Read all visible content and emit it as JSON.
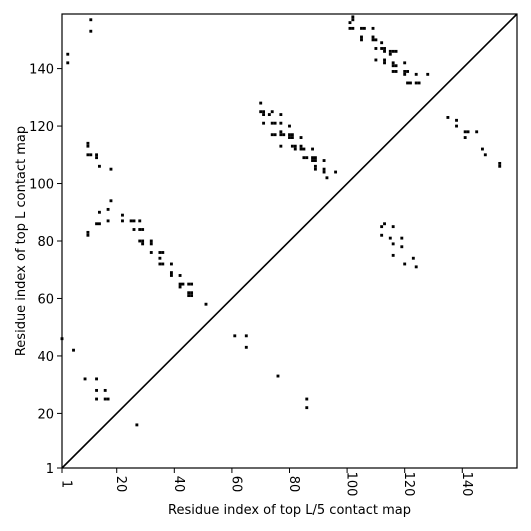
{
  "chart_data": {
    "type": "scatter",
    "title": "",
    "xlabel": "Residue index of top L/5 contact map",
    "ylabel": "Residue index of top L contact map",
    "xlim": [
      1,
      159
    ],
    "ylim": [
      1,
      159
    ],
    "grid": false,
    "legend": "none",
    "diagonal": true,
    "marker_color": "#000000",
    "x_ticks": [
      {
        "value": 1,
        "label": "1"
      },
      {
        "value": 20,
        "label": "20"
      },
      {
        "value": 40,
        "label": "40"
      },
      {
        "value": 60,
        "label": "60"
      },
      {
        "value": 80,
        "label": "80"
      },
      {
        "value": 100,
        "label": "100"
      },
      {
        "value": 120,
        "label": "120"
      },
      {
        "value": 140,
        "label": "140"
      }
    ],
    "y_ticks": [
      {
        "value": 1,
        "label": "1"
      },
      {
        "value": 20,
        "label": "20"
      },
      {
        "value": 40,
        "label": "40"
      },
      {
        "value": 60,
        "label": "60"
      },
      {
        "value": 80,
        "label": "80"
      },
      {
        "value": 100,
        "label": "100"
      },
      {
        "value": 120,
        "label": "120"
      },
      {
        "value": 140,
        "label": "140"
      }
    ],
    "upper_points": [
      [
        3,
        145
      ],
      [
        3,
        142
      ],
      [
        11,
        157
      ],
      [
        11,
        153
      ],
      [
        10,
        114
      ],
      [
        10,
        113
      ],
      [
        10,
        110
      ],
      [
        11,
        110
      ],
      [
        13,
        110
      ],
      [
        13,
        109
      ],
      [
        14,
        106
      ],
      [
        18,
        105
      ],
      [
        10,
        83
      ],
      [
        10,
        82
      ],
      [
        13,
        86
      ],
      [
        14,
        86
      ],
      [
        14,
        90
      ],
      [
        17,
        91
      ],
      [
        18,
        94
      ],
      [
        17,
        87
      ],
      [
        22,
        89
      ],
      [
        22,
        87
      ],
      [
        25,
        87
      ],
      [
        26,
        87
      ],
      [
        26,
        84
      ],
      [
        28,
        87
      ],
      [
        28,
        84
      ],
      [
        29,
        84
      ],
      [
        28,
        80
      ],
      [
        29,
        79
      ],
      [
        29,
        80
      ],
      [
        32,
        80
      ],
      [
        32,
        79
      ],
      [
        32,
        76
      ],
      [
        35,
        76
      ],
      [
        36,
        76
      ],
      [
        35,
        74
      ],
      [
        35,
        72
      ],
      [
        36,
        72
      ],
      [
        39,
        72
      ],
      [
        39,
        69
      ],
      [
        39,
        68
      ],
      [
        42,
        68
      ],
      [
        42,
        65
      ],
      [
        42,
        64
      ],
      [
        43,
        65
      ],
      [
        45,
        65
      ],
      [
        46,
        65
      ],
      [
        45,
        62
      ],
      [
        46,
        62
      ],
      [
        45,
        61
      ],
      [
        46,
        61
      ],
      [
        51,
        58
      ],
      [
        70,
        128
      ],
      [
        70,
        125
      ],
      [
        71,
        125
      ],
      [
        71,
        124
      ],
      [
        73,
        124
      ],
      [
        74,
        125
      ],
      [
        71,
        121
      ],
      [
        74,
        121
      ],
      [
        75,
        121
      ],
      [
        77,
        121
      ],
      [
        74,
        117
      ],
      [
        75,
        117
      ],
      [
        77,
        118
      ],
      [
        77,
        117
      ],
      [
        78,
        117
      ],
      [
        80,
        117
      ],
      [
        81,
        117
      ],
      [
        80,
        116
      ],
      [
        81,
        116
      ],
      [
        77,
        113
      ],
      [
        81,
        113
      ],
      [
        82,
        113
      ],
      [
        84,
        113
      ],
      [
        82,
        112
      ],
      [
        84,
        112
      ],
      [
        85,
        112
      ],
      [
        85,
        109
      ],
      [
        86,
        109
      ],
      [
        88,
        112
      ],
      [
        88,
        109
      ],
      [
        89,
        109
      ],
      [
        88,
        108
      ],
      [
        89,
        108
      ],
      [
        89,
        106
      ],
      [
        89,
        105
      ],
      [
        92,
        108
      ],
      [
        92,
        105
      ],
      [
        92,
        104
      ],
      [
        93,
        102
      ],
      [
        96,
        104
      ],
      [
        80,
        120
      ],
      [
        84,
        116
      ],
      [
        77,
        124
      ],
      [
        102,
        158
      ],
      [
        102,
        157
      ],
      [
        101,
        156
      ],
      [
        101,
        154
      ],
      [
        102,
        154
      ],
      [
        105,
        154
      ],
      [
        106,
        154
      ],
      [
        105,
        151
      ],
      [
        105,
        150
      ],
      [
        109,
        154
      ],
      [
        109,
        151
      ],
      [
        109,
        150
      ],
      [
        110,
        150
      ],
      [
        112,
        149
      ],
      [
        112,
        147
      ],
      [
        113,
        147
      ],
      [
        113,
        146
      ],
      [
        115,
        146
      ],
      [
        115,
        145
      ],
      [
        116,
        146
      ],
      [
        117,
        146
      ],
      [
        110,
        147
      ],
      [
        110,
        143
      ],
      [
        113,
        143
      ],
      [
        113,
        142
      ],
      [
        116,
        142
      ],
      [
        116,
        141
      ],
      [
        117,
        141
      ],
      [
        116,
        139
      ],
      [
        117,
        139
      ],
      [
        120,
        142
      ],
      [
        120,
        139
      ],
      [
        121,
        139
      ],
      [
        120,
        138
      ],
      [
        121,
        135
      ],
      [
        122,
        135
      ],
      [
        124,
        138
      ],
      [
        124,
        135
      ],
      [
        125,
        135
      ],
      [
        128,
        138
      ],
      [
        135,
        123
      ],
      [
        138,
        122
      ],
      [
        138,
        120
      ],
      [
        141,
        118
      ],
      [
        142,
        118
      ],
      [
        141,
        116
      ],
      [
        145,
        118
      ],
      [
        147,
        112
      ],
      [
        148,
        110
      ],
      [
        153,
        107
      ],
      [
        153,
        106
      ]
    ],
    "lower_points": [
      [
        1,
        46
      ],
      [
        5,
        42
      ],
      [
        9,
        32
      ],
      [
        13,
        32
      ],
      [
        13,
        28
      ],
      [
        13,
        25
      ],
      [
        16,
        28
      ],
      [
        16,
        25
      ],
      [
        17,
        25
      ],
      [
        27,
        16
      ],
      [
        61,
        47
      ],
      [
        65,
        47
      ],
      [
        65,
        43
      ],
      [
        76,
        33
      ],
      [
        86,
        25
      ],
      [
        86,
        22
      ],
      [
        112,
        85
      ],
      [
        112,
        82
      ],
      [
        113,
        86
      ],
      [
        115,
        81
      ],
      [
        116,
        85
      ],
      [
        116,
        79
      ],
      [
        116,
        75
      ],
      [
        119,
        81
      ],
      [
        119,
        78
      ],
      [
        120,
        72
      ],
      [
        123,
        74
      ],
      [
        124,
        71
      ]
    ]
  }
}
